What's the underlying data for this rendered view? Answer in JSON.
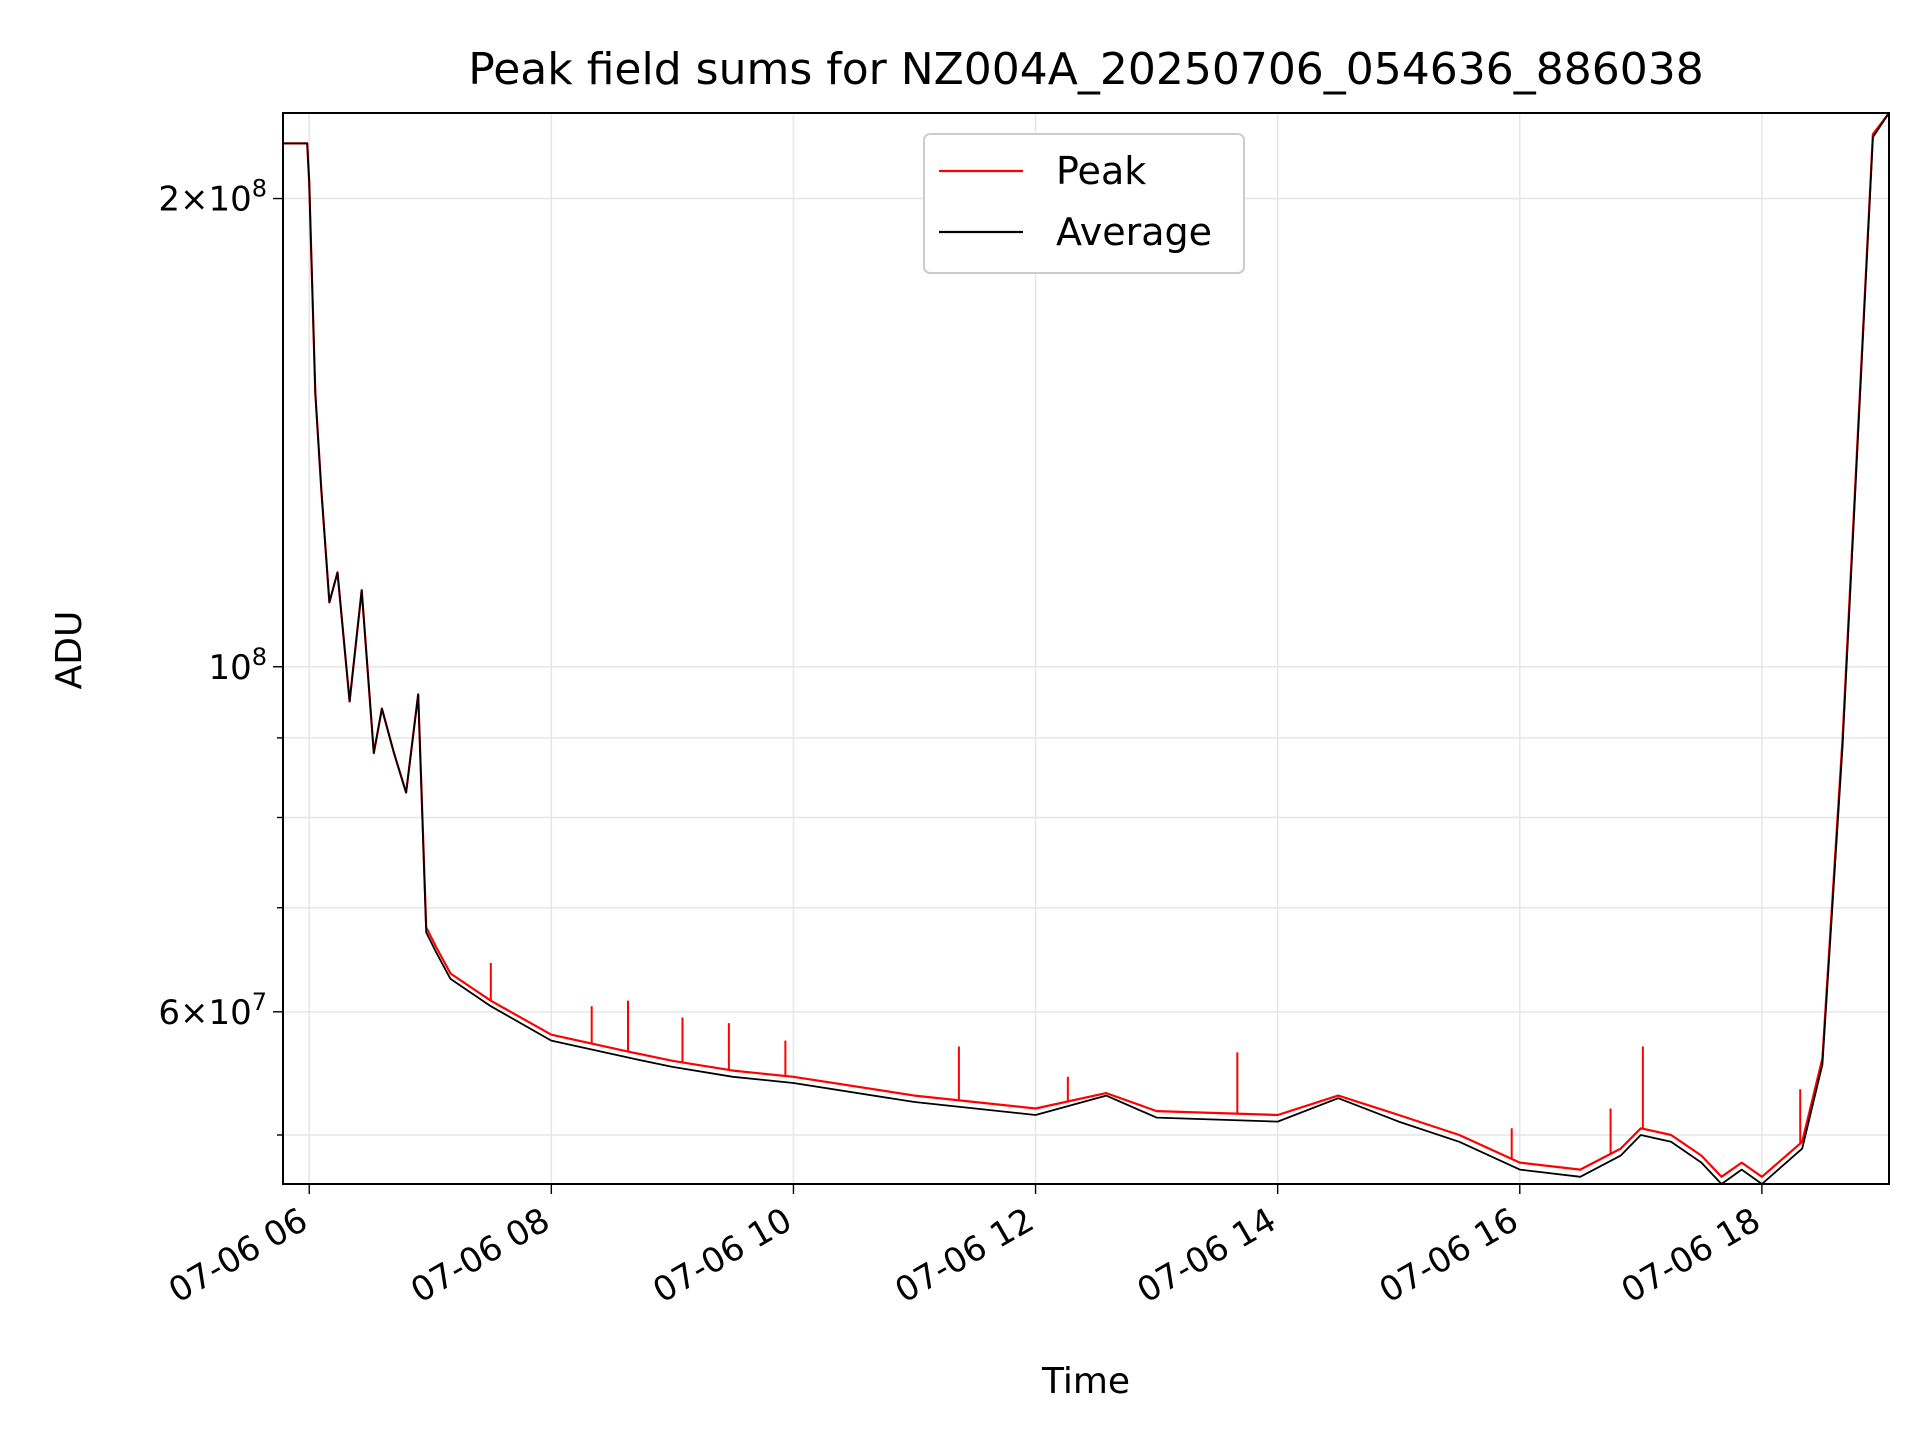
{
  "chart_data": {
    "type": "line",
    "title": "Peak field sums for NZ004A_20250706_054636_886038",
    "xlabel": "Time",
    "ylabel": "ADU",
    "y_scale": "log",
    "grid": true,
    "legend_placement": "top-center",
    "xlim": [
      "2025-07-06 05:47",
      "2025-07-06 19:03"
    ],
    "ylim": [
      46500000,
      227000000
    ],
    "x_ticks": [
      "07-06 06",
      "07-06 08",
      "07-06 10",
      "07-06 12",
      "07-06 14",
      "07-06 16",
      "07-06 18"
    ],
    "x_tick_times": [
      "2025-07-06 06:00",
      "2025-07-06 08:00",
      "2025-07-06 10:00",
      "2025-07-06 12:00",
      "2025-07-06 14:00",
      "2025-07-06 16:00",
      "2025-07-06 18:00"
    ],
    "y_ticks_major": [
      {
        "value": 200000000,
        "mantissa": "2",
        "exponent": "8"
      },
      {
        "value": 100000000,
        "mantissa": "",
        "exponent": "8"
      },
      {
        "value": 60000000,
        "mantissa": "6",
        "exponent": "7"
      }
    ],
    "y_ticks_minor": [
      50000000,
      70000000,
      80000000,
      90000000
    ],
    "series": [
      {
        "name": "Peak",
        "color": "#ff0000",
        "x": [
          "2025-07-06 05:47",
          "2025-07-06 05:59",
          "2025-07-06 06:00",
          "2025-07-06 06:03",
          "2025-07-06 06:06",
          "2025-07-06 06:10",
          "2025-07-06 06:14",
          "2025-07-06 06:20",
          "2025-07-06 06:26",
          "2025-07-06 06:32",
          "2025-07-06 06:36",
          "2025-07-06 06:42",
          "2025-07-06 06:48",
          "2025-07-06 06:54",
          "2025-07-06 06:58",
          "2025-07-06 07:03",
          "2025-07-06 07:10",
          "2025-07-06 07:30",
          "2025-07-06 08:00",
          "2025-07-06 08:40",
          "2025-07-06 09:00",
          "2025-07-06 09:30",
          "2025-07-06 10:00",
          "2025-07-06 11:00",
          "2025-07-06 12:00",
          "2025-07-06 12:35",
          "2025-07-06 13:00",
          "2025-07-06 14:00",
          "2025-07-06 14:30",
          "2025-07-06 15:00",
          "2025-07-06 15:30",
          "2025-07-06 16:00",
          "2025-07-06 16:30",
          "2025-07-06 16:50",
          "2025-07-06 17:00",
          "2025-07-06 17:15",
          "2025-07-06 17:30",
          "2025-07-06 17:40",
          "2025-07-06 17:50",
          "2025-07-06 18:00",
          "2025-07-06 18:20",
          "2025-07-06 18:30",
          "2025-07-06 18:40",
          "2025-07-06 18:55",
          "2025-07-06 19:03"
        ],
        "values": [
          217000000,
          217000000,
          205000000,
          150000000,
          130000000,
          110000000,
          115000000,
          95000000,
          112000000,
          88000000,
          94000000,
          88000000,
          83000000,
          96000000,
          68000000,
          66000000,
          63500000,
          61000000,
          58000000,
          56500000,
          55800000,
          55000000,
          54500000,
          53000000,
          52000000,
          53200000,
          51800000,
          51500000,
          53000000,
          51500000,
          50000000,
          48000000,
          47500000,
          49000000,
          50500000,
          50000000,
          48500000,
          47000000,
          48000000,
          47000000,
          49500000,
          56000000,
          90000000,
          220000000,
          227000000
        ],
        "spikes": [
          {
            "x": "2025-07-06 07:30",
            "value": 64500000
          },
          {
            "x": "2025-07-06 08:20",
            "value": 60500000
          },
          {
            "x": "2025-07-06 08:38",
            "value": 61000000
          },
          {
            "x": "2025-07-06 09:05",
            "value": 59500000
          },
          {
            "x": "2025-07-06 09:28",
            "value": 59000000
          },
          {
            "x": "2025-07-06 09:56",
            "value": 57500000
          },
          {
            "x": "2025-07-06 11:22",
            "value": 57000000
          },
          {
            "x": "2025-07-06 12:16",
            "value": 54500000
          },
          {
            "x": "2025-07-06 13:40",
            "value": 56500000
          },
          {
            "x": "2025-07-06 15:56",
            "value": 50500000
          },
          {
            "x": "2025-07-06 16:45",
            "value": 52000000
          },
          {
            "x": "2025-07-06 17:01",
            "value": 57000000
          },
          {
            "x": "2025-07-06 18:19",
            "value": 53500000
          }
        ]
      },
      {
        "name": "Average",
        "color": "#000000",
        "x": [
          "2025-07-06 05:47",
          "2025-07-06 05:59",
          "2025-07-06 06:00",
          "2025-07-06 06:03",
          "2025-07-06 06:06",
          "2025-07-06 06:10",
          "2025-07-06 06:14",
          "2025-07-06 06:20",
          "2025-07-06 06:26",
          "2025-07-06 06:32",
          "2025-07-06 06:36",
          "2025-07-06 06:42",
          "2025-07-06 06:48",
          "2025-07-06 06:54",
          "2025-07-06 06:58",
          "2025-07-06 07:03",
          "2025-07-06 07:10",
          "2025-07-06 07:30",
          "2025-07-06 08:00",
          "2025-07-06 08:40",
          "2025-07-06 09:00",
          "2025-07-06 09:30",
          "2025-07-06 10:00",
          "2025-07-06 11:00",
          "2025-07-06 12:00",
          "2025-07-06 12:35",
          "2025-07-06 13:00",
          "2025-07-06 14:00",
          "2025-07-06 14:30",
          "2025-07-06 15:00",
          "2025-07-06 15:30",
          "2025-07-06 16:00",
          "2025-07-06 16:30",
          "2025-07-06 16:50",
          "2025-07-06 17:00",
          "2025-07-06 17:15",
          "2025-07-06 17:30",
          "2025-07-06 17:40",
          "2025-07-06 17:50",
          "2025-07-06 18:00",
          "2025-07-06 18:20",
          "2025-07-06 18:30",
          "2025-07-06 18:40",
          "2025-07-06 18:55",
          "2025-07-06 19:03"
        ],
        "values": [
          217000000,
          217000000,
          205000000,
          150000000,
          130000000,
          110000000,
          115000000,
          95000000,
          112000000,
          88000000,
          94000000,
          88000000,
          83000000,
          96000000,
          67500000,
          65500000,
          63000000,
          60500000,
          57500000,
          56000000,
          55300000,
          54500000,
          54000000,
          52500000,
          51500000,
          53000000,
          51300000,
          51000000,
          52800000,
          51000000,
          49500000,
          47500000,
          47000000,
          48500000,
          50000000,
          49500000,
          48000000,
          46500000,
          47500000,
          46500000,
          49000000,
          55500000,
          89000000,
          219000000,
          227000000
        ]
      }
    ]
  }
}
